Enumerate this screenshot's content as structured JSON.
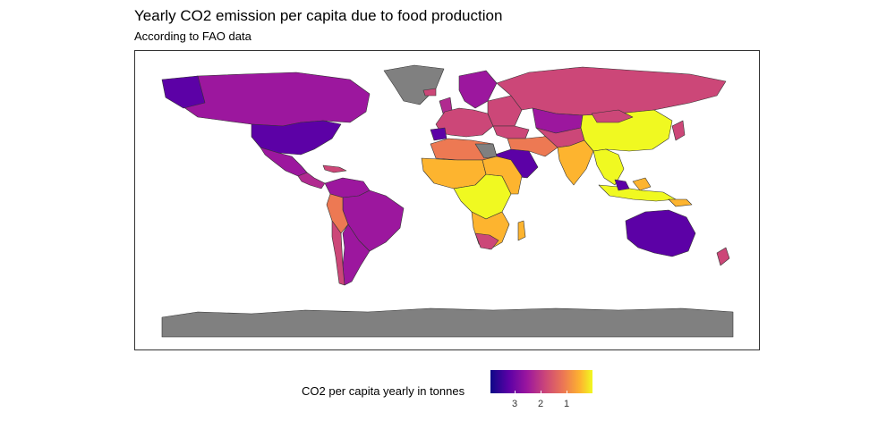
{
  "title": "Yearly CO2 emission per capita due to food production",
  "subtitle": "According to FAO data",
  "legend": {
    "title": "CO2 per capita yearly in tonnes",
    "ticks": [
      "3",
      "2",
      "1"
    ],
    "palette": [
      "#0d0887",
      "#5c01a6",
      "#9c179e",
      "#cc4778",
      "#ed7953",
      "#fdb42f",
      "#f0f921"
    ],
    "direction": "reversed"
  },
  "colors": {
    "no_data": "#808080",
    "border": "#333333",
    "high_emission": "#5c01a6",
    "low_emission": "#f0f921"
  }
}
